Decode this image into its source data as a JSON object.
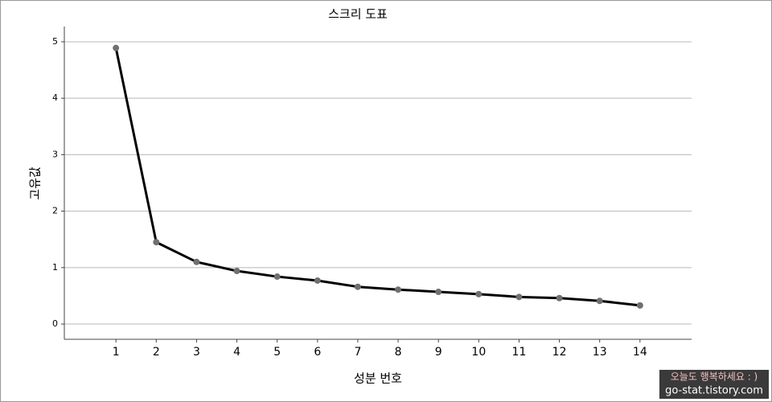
{
  "chart_data": {
    "type": "line",
    "title": "스크리 도표",
    "xlabel": "성분 번호",
    "ylabel": "고유값",
    "x": [
      1,
      2,
      3,
      4,
      5,
      6,
      7,
      8,
      9,
      10,
      11,
      12,
      13,
      14
    ],
    "series": [
      {
        "color": "#000000",
        "marker_color": "#707070",
        "values": [
          4.89,
          1.45,
          1.1,
          0.94,
          0.84,
          0.77,
          0.66,
          0.61,
          0.57,
          0.53,
          0.48,
          0.46,
          0.41,
          0.33
        ]
      }
    ],
    "xlim": [
      -0.28,
      15.28
    ],
    "xticks": [
      1,
      2,
      3,
      4,
      5,
      6,
      7,
      8,
      9,
      10,
      11,
      12,
      13,
      14
    ],
    "ylim": [
      -0.27,
      5.27
    ],
    "yticks": [
      0,
      1,
      2,
      3,
      4,
      5
    ],
    "grid": true
  },
  "watermark": {
    "line1": "오늘도 행복하세요 : )",
    "line2": "go-stat.tistory.com"
  }
}
